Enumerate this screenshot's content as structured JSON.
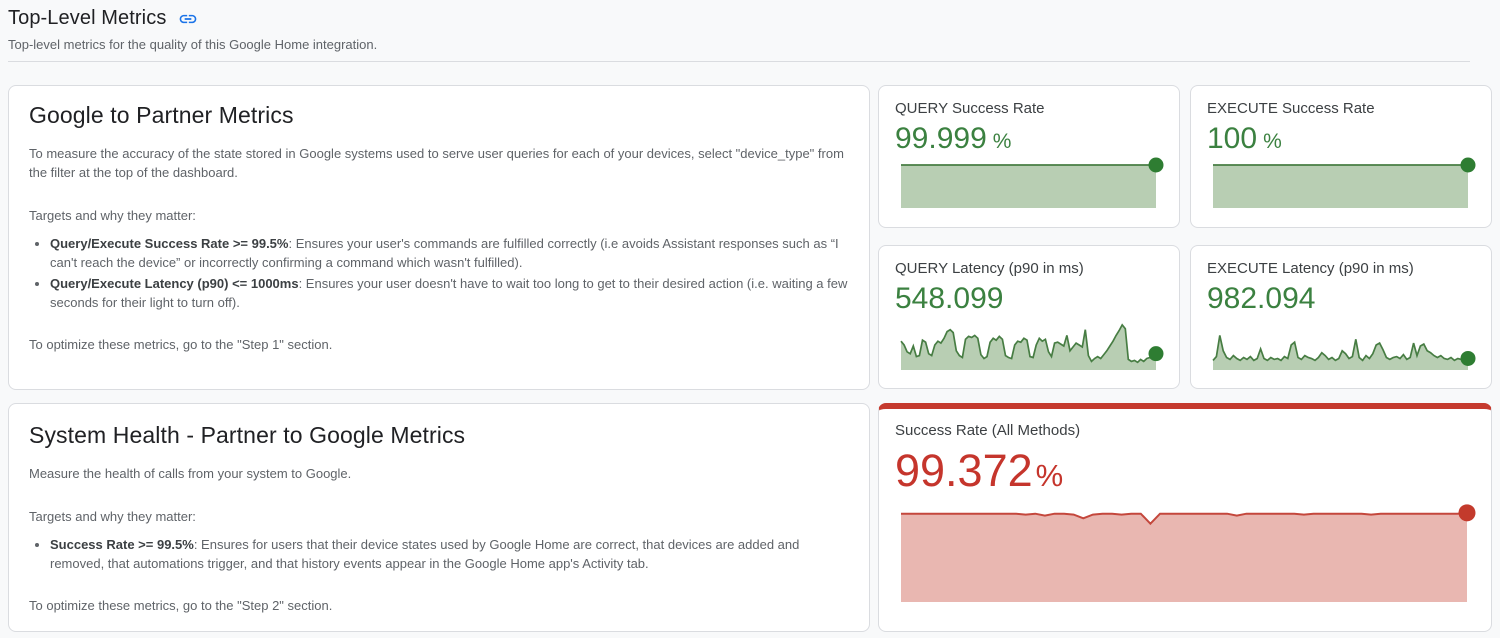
{
  "page": {
    "title": "Top-Level Metrics",
    "subtitle": "Top-level metrics for the quality of this Google Home integration."
  },
  "colors": {
    "accent_blue": "#1a73e8",
    "value_green": "#3b8140",
    "value_red": "#c5352c",
    "red_border": "#c53a2e",
    "card_border": "#dadce0",
    "page_background": "#f8f9fa",
    "green_spark": {
      "line": "#477d43",
      "fill": "#b8ceb3",
      "dot": "#2e7d32"
    },
    "red_spark": {
      "line": "#c4473c",
      "fill": "#e9b7b1",
      "dot": "#c33a2c"
    }
  },
  "google_to_partner": {
    "title": "Google to Partner Metrics",
    "intro": "To measure the accuracy of the state stored in Google systems used to serve user queries for each of your devices, select \"device_type\" from the filter at the top of the dashboard.",
    "targets_label": "Targets and why they matter:",
    "bullets": [
      {
        "term": "Query/Execute Success Rate >= 99.5%",
        "desc": ": Ensures your user's commands are fulfilled correctly (i.e avoids Assistant responses such as “I can't reach the device” or incorrectly confirming a command which wasn't fulfilled)."
      },
      {
        "term": "Query/Execute Latency (p90) <= 1000ms",
        "desc": ": Ensures your user doesn't have to wait too long to get to their desired action (i.e. waiting a few seconds for their light to turn off)."
      }
    ],
    "footer": "To optimize these metrics, go to the \"Step 1\" section."
  },
  "system_health": {
    "title": "System Health - Partner to Google Metrics",
    "intro": "Measure the health of calls from your system to Google.",
    "targets_label": "Targets and why they matter:",
    "bullets": [
      {
        "term": "Success Rate >= 99.5%",
        "desc": ": Ensures for users that their device states used by Google Home are correct, that devices are added and removed, that automations trigger, and that history events appear in the Google Home app's Activity tab."
      }
    ],
    "footer": "To optimize these metrics, go to the \"Step 2\" section."
  },
  "metrics": [
    {
      "label": "QUERY Success Rate",
      "value": "99.999",
      "unit": "%",
      "spark": {
        "type": "area",
        "palette": "green_spark",
        "max": 100,
        "values": [
          100,
          100
        ]
      }
    },
    {
      "label": "EXECUTE Success Rate",
      "value": "100",
      "unit": "%",
      "spark": {
        "type": "area",
        "palette": "green_spark",
        "max": 100,
        "values": [
          100,
          100
        ]
      }
    },
    {
      "label": "QUERY Latency (p90 in ms)",
      "value": "548.099",
      "unit": "",
      "spark": {
        "type": "area",
        "palette": "green_spark",
        "max": 100,
        "values": [
          60,
          52,
          38,
          34,
          50,
          28,
          30,
          62,
          58,
          34,
          30,
          52,
          60,
          56,
          66,
          80,
          84,
          78,
          40,
          30,
          26,
          64,
          70,
          68,
          72,
          66,
          32,
          24,
          28,
          58,
          66,
          62,
          70,
          64,
          30,
          26,
          24,
          52,
          60,
          58,
          66,
          62,
          28,
          26,
          52,
          66,
          60,
          64,
          38,
          28,
          56,
          58,
          54,
          50,
          72,
          40,
          48,
          56,
          52,
          48,
          84,
          30,
          18,
          24,
          28,
          24,
          32,
          40,
          50,
          60,
          72,
          82,
          94,
          86,
          22,
          18,
          20,
          16,
          22,
          18,
          24,
          26,
          22,
          34
        ]
      }
    },
    {
      "label": "EXECUTE Latency (p90 in ms)",
      "value": "982.094",
      "unit": "",
      "spark": {
        "type": "area",
        "palette": "green_spark",
        "max": 100,
        "values": [
          20,
          28,
          72,
          40,
          26,
          22,
          30,
          24,
          20,
          26,
          22,
          28,
          20,
          24,
          44,
          24,
          20,
          26,
          22,
          24,
          20,
          28,
          24,
          52,
          58,
          26,
          22,
          30,
          26,
          24,
          20,
          26,
          36,
          30,
          22,
          26,
          20,
          24,
          40,
          34,
          24,
          28,
          64,
          26,
          20,
          30,
          24,
          34,
          52,
          56,
          42,
          26,
          22,
          26,
          28,
          24,
          32,
          22,
          26,
          56,
          30,
          50,
          54,
          40,
          36,
          30,
          26,
          30,
          24,
          22,
          26,
          20,
          24,
          22,
          30,
          24
        ]
      }
    }
  ],
  "success_all_methods": {
    "label": "Success Rate (All Methods)",
    "value": "99.372",
    "unit": "%",
    "spark": {
      "type": "area",
      "palette": "red_spark",
      "max": 100,
      "values": [
        97,
        97,
        97,
        97,
        97,
        97,
        97,
        97,
        97,
        97,
        97,
        97,
        97,
        96,
        97,
        95,
        97,
        97,
        96,
        92,
        96,
        97,
        97,
        96,
        97,
        97,
        86,
        97,
        97,
        97,
        97,
        97,
        97,
        97,
        97,
        95,
        97,
        97,
        97,
        97,
        97,
        97,
        96,
        97,
        97,
        97,
        97,
        97,
        97,
        96,
        97,
        97,
        97,
        97,
        97,
        97,
        97,
        97,
        97,
        98
      ]
    }
  }
}
